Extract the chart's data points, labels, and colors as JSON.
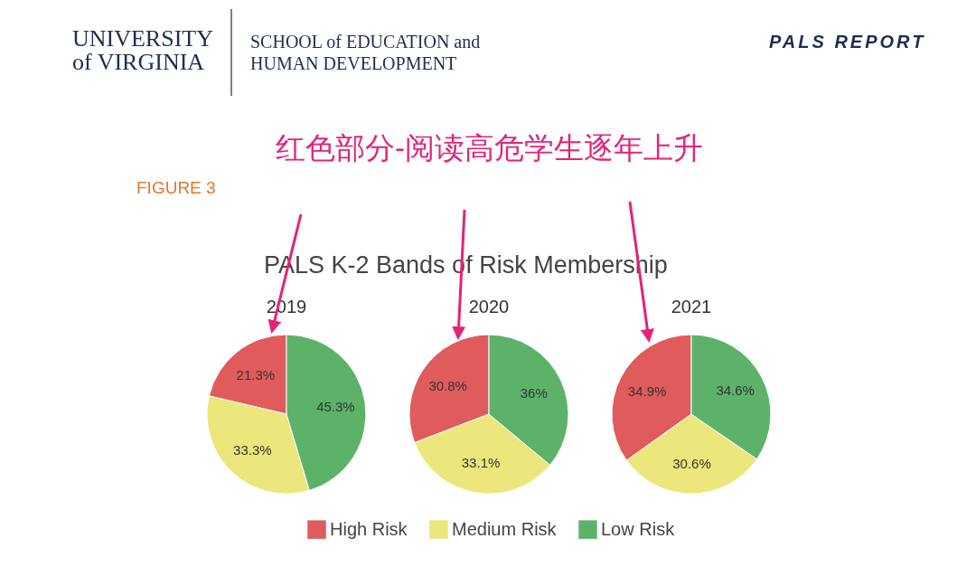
{
  "chart_data": [
    {
      "type": "other",
      "title": "红色部分-阅读高危学生逐年上升",
      "annotations": [
        "UNIVERSITY of VIRGINIA",
        "SCHOOL of EDUCATION and HUMAN DEVELOPMENT",
        "PALS REPORT",
        "FIGURE 3",
        "PALS K-2 Bands of Risk Membership"
      ]
    },
    {
      "type": "pie",
      "title": "2019",
      "categories": [
        "High Risk",
        "Medium Risk",
        "Low Risk"
      ],
      "values": [
        21.3,
        33.3,
        45.3
      ],
      "value_labels": [
        "21.3%",
        "33.3%",
        "45.3%"
      ],
      "colors": [
        "#e05c5c",
        "#ece77c",
        "#5db26a"
      ],
      "legend": "bottom"
    },
    {
      "type": "pie",
      "title": "2020",
      "categories": [
        null,
        null,
        null
      ],
      "values": [
        30.8,
        33.1,
        36
      ],
      "value_labels": [
        "30.8%",
        "33.1%",
        "36%"
      ],
      "colors": [
        "#e05c5c",
        "#ece77c",
        "#5db26a"
      ]
    },
    {
      "type": "pie",
      "title": "2021",
      "categories": [
        null,
        null,
        null
      ],
      "values": [
        34.9,
        30.6,
        34.6
      ],
      "value_labels": [
        "34.9%",
        "30.6%",
        "34.6%"
      ],
      "colors": [
        "#e05c5c",
        "#ece77c",
        "#5db26a"
      ]
    }
  ]
}
